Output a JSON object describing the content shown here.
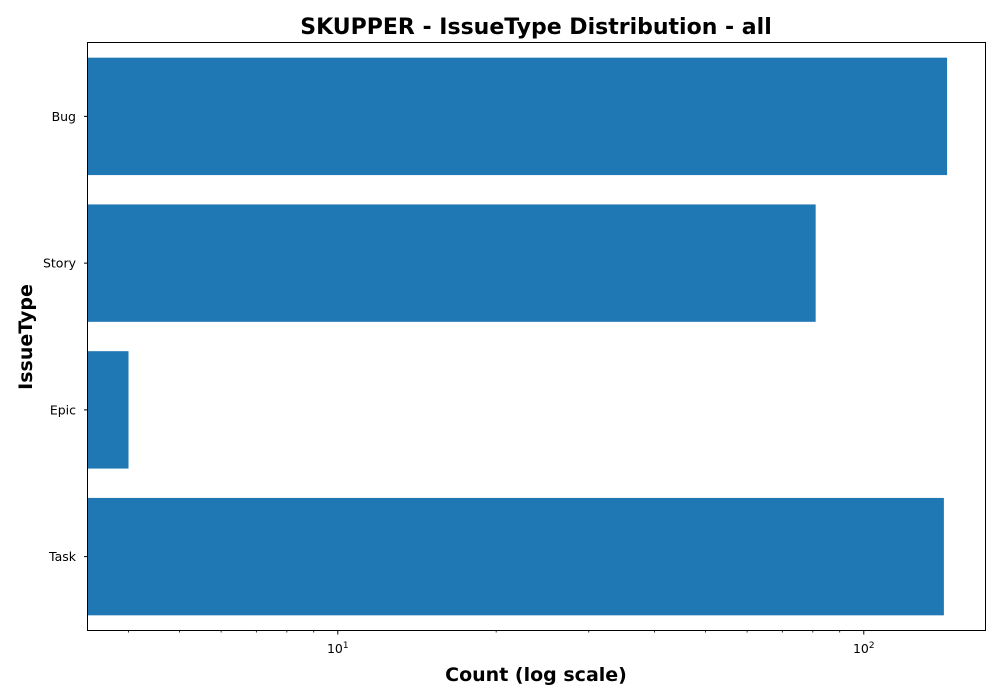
{
  "chart_data": {
    "type": "bar",
    "orientation": "horizontal",
    "title": "SKUPPER - IssueType Distribution - all",
    "xlabel": "Count (log scale)",
    "ylabel": "IssueType",
    "x_scale": "log",
    "xlim": [
      3.35,
      170
    ],
    "categories": [
      "Bug",
      "Story",
      "Epic",
      "Task"
    ],
    "values": [
      144,
      81,
      4,
      142
    ],
    "x_ticks": [
      {
        "value": 10,
        "base": "10",
        "exp": "1"
      },
      {
        "value": 100,
        "base": "10",
        "exp": "2"
      }
    ],
    "bar_color": "#1f77b4",
    "grid": false,
    "legend": "none"
  }
}
